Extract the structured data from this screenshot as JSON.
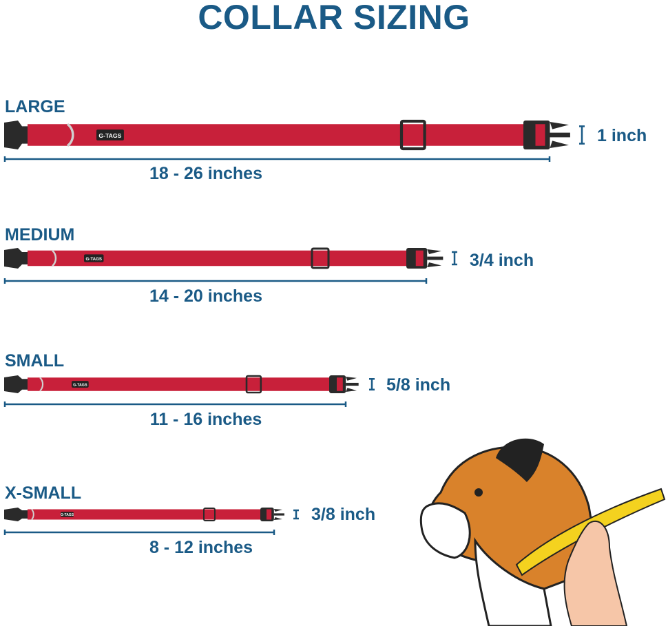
{
  "title": "COLLAR SIZING",
  "colors": {
    "text": "#1a5a86",
    "strap": "#c8203a",
    "buckle": "#2a2a2a",
    "ring": "#d0d0d0"
  },
  "brand_tag": "G-TAGS",
  "sizes": [
    {
      "name": "LARGE",
      "width": "1 inch",
      "range": "18 - 26 inches"
    },
    {
      "name": "MEDIUM",
      "width": "3/4 inch",
      "range": "14 - 20 inches"
    },
    {
      "name": "SMALL",
      "width": "5/8 inch",
      "range": "11 - 16 inches"
    },
    {
      "name": "X-SMALL",
      "width": "3/8 inch",
      "range": "8 - 12 inches"
    }
  ],
  "illustration": "boxer-dog-neck-measuring-tape"
}
